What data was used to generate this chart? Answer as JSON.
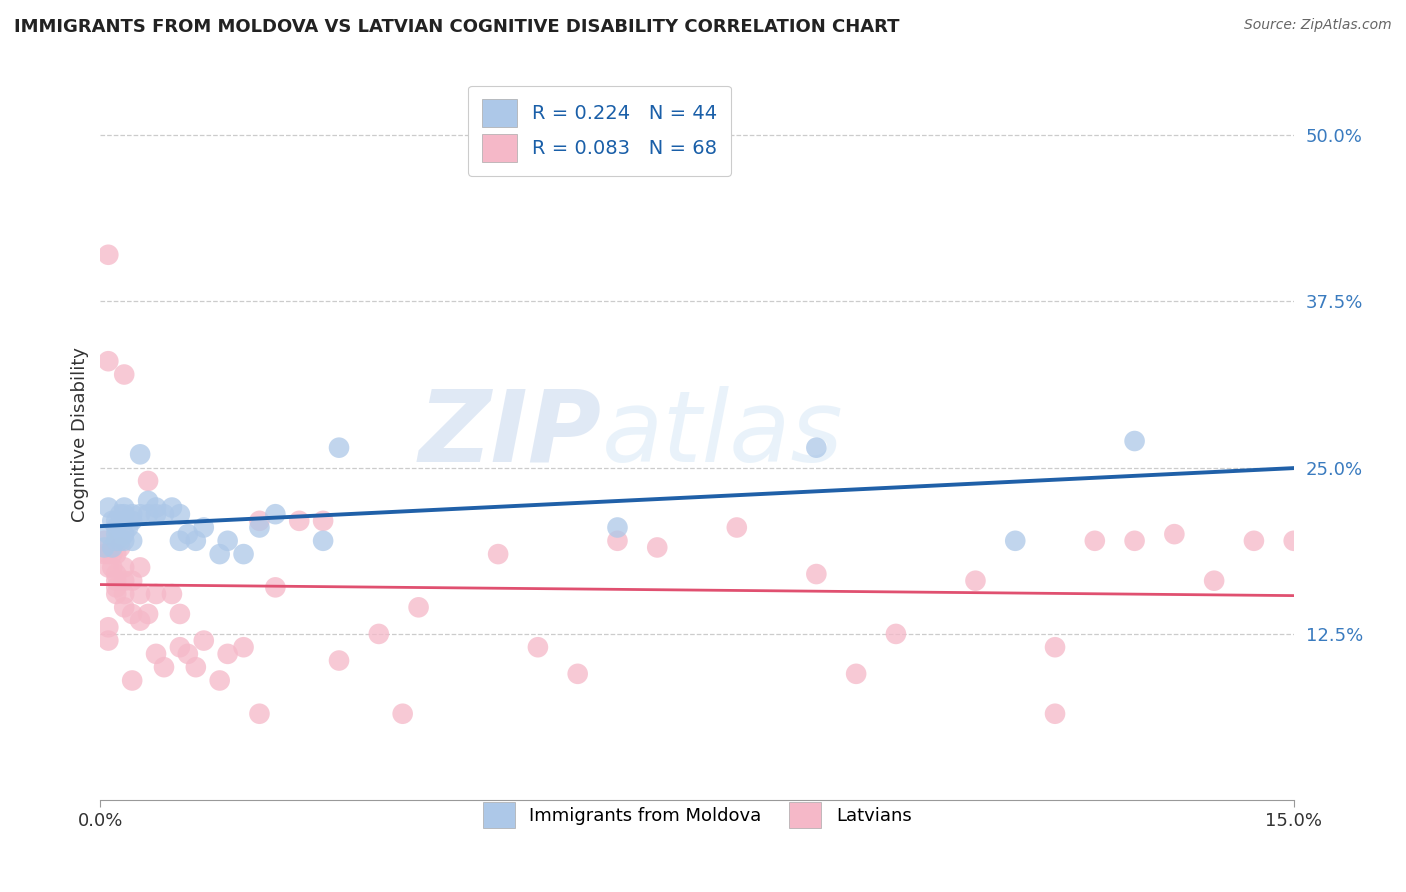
{
  "title": "IMMIGRANTS FROM MOLDOVA VS LATVIAN COGNITIVE DISABILITY CORRELATION CHART",
  "source": "Source: ZipAtlas.com",
  "ylabel": "Cognitive Disability",
  "xlim": [
    0.0,
    0.15
  ],
  "ylim": [
    0.0,
    0.55
  ],
  "yticks": [
    0.125,
    0.25,
    0.375,
    0.5
  ],
  "ytick_labels": [
    "12.5%",
    "25.0%",
    "37.5%",
    "50.0%"
  ],
  "xticks": [
    0.0,
    0.15
  ],
  "xtick_labels": [
    "0.0%",
    "15.0%"
  ],
  "blue_R": 0.224,
  "blue_N": 44,
  "pink_R": 0.083,
  "pink_N": 68,
  "blue_color": "#adc8e8",
  "pink_color": "#f5b8c8",
  "blue_line_color": "#2060a8",
  "pink_line_color": "#e05070",
  "legend_label_blue": "Immigrants from Moldova",
  "legend_label_pink": "Latvians",
  "watermark_zip": "ZIP",
  "watermark_atlas": "atlas",
  "grid_color": "#cccccc",
  "blue_points_x": [
    0.0005,
    0.001,
    0.001,
    0.0015,
    0.0015,
    0.002,
    0.002,
    0.002,
    0.002,
    0.0025,
    0.0025,
    0.003,
    0.003,
    0.003,
    0.003,
    0.003,
    0.0035,
    0.004,
    0.004,
    0.004,
    0.005,
    0.005,
    0.006,
    0.006,
    0.007,
    0.007,
    0.008,
    0.009,
    0.01,
    0.01,
    0.011,
    0.012,
    0.013,
    0.015,
    0.016,
    0.018,
    0.02,
    0.022,
    0.028,
    0.03,
    0.065,
    0.09,
    0.115,
    0.13
  ],
  "blue_points_y": [
    0.19,
    0.22,
    0.2,
    0.21,
    0.19,
    0.205,
    0.195,
    0.21,
    0.2,
    0.215,
    0.195,
    0.2,
    0.215,
    0.195,
    0.21,
    0.22,
    0.205,
    0.195,
    0.21,
    0.215,
    0.26,
    0.215,
    0.215,
    0.225,
    0.215,
    0.22,
    0.215,
    0.22,
    0.195,
    0.215,
    0.2,
    0.195,
    0.205,
    0.185,
    0.195,
    0.185,
    0.205,
    0.215,
    0.195,
    0.265,
    0.205,
    0.265,
    0.195,
    0.27
  ],
  "pink_points_x": [
    0.0005,
    0.0005,
    0.001,
    0.001,
    0.001,
    0.0015,
    0.0015,
    0.002,
    0.002,
    0.002,
    0.002,
    0.002,
    0.0025,
    0.003,
    0.003,
    0.003,
    0.003,
    0.004,
    0.004,
    0.005,
    0.005,
    0.005,
    0.006,
    0.006,
    0.007,
    0.007,
    0.008,
    0.009,
    0.01,
    0.01,
    0.011,
    0.012,
    0.013,
    0.015,
    0.016,
    0.018,
    0.02,
    0.022,
    0.025,
    0.028,
    0.03,
    0.035,
    0.04,
    0.05,
    0.055,
    0.06,
    0.065,
    0.07,
    0.08,
    0.09,
    0.095,
    0.1,
    0.11,
    0.12,
    0.125,
    0.13,
    0.135,
    0.14,
    0.145,
    0.15,
    0.003,
    0.001,
    0.004,
    0.02,
    0.038,
    0.12,
    0.001,
    0.001
  ],
  "pink_points_y": [
    0.195,
    0.185,
    0.185,
    0.175,
    0.41,
    0.175,
    0.185,
    0.17,
    0.165,
    0.155,
    0.185,
    0.16,
    0.19,
    0.155,
    0.175,
    0.145,
    0.165,
    0.14,
    0.165,
    0.135,
    0.155,
    0.175,
    0.24,
    0.14,
    0.11,
    0.155,
    0.1,
    0.155,
    0.14,
    0.115,
    0.11,
    0.1,
    0.12,
    0.09,
    0.11,
    0.115,
    0.21,
    0.16,
    0.21,
    0.21,
    0.105,
    0.125,
    0.145,
    0.185,
    0.115,
    0.095,
    0.195,
    0.19,
    0.205,
    0.17,
    0.095,
    0.125,
    0.165,
    0.115,
    0.195,
    0.195,
    0.2,
    0.165,
    0.195,
    0.195,
    0.32,
    0.33,
    0.09,
    0.065,
    0.065,
    0.065,
    0.12,
    0.13
  ]
}
